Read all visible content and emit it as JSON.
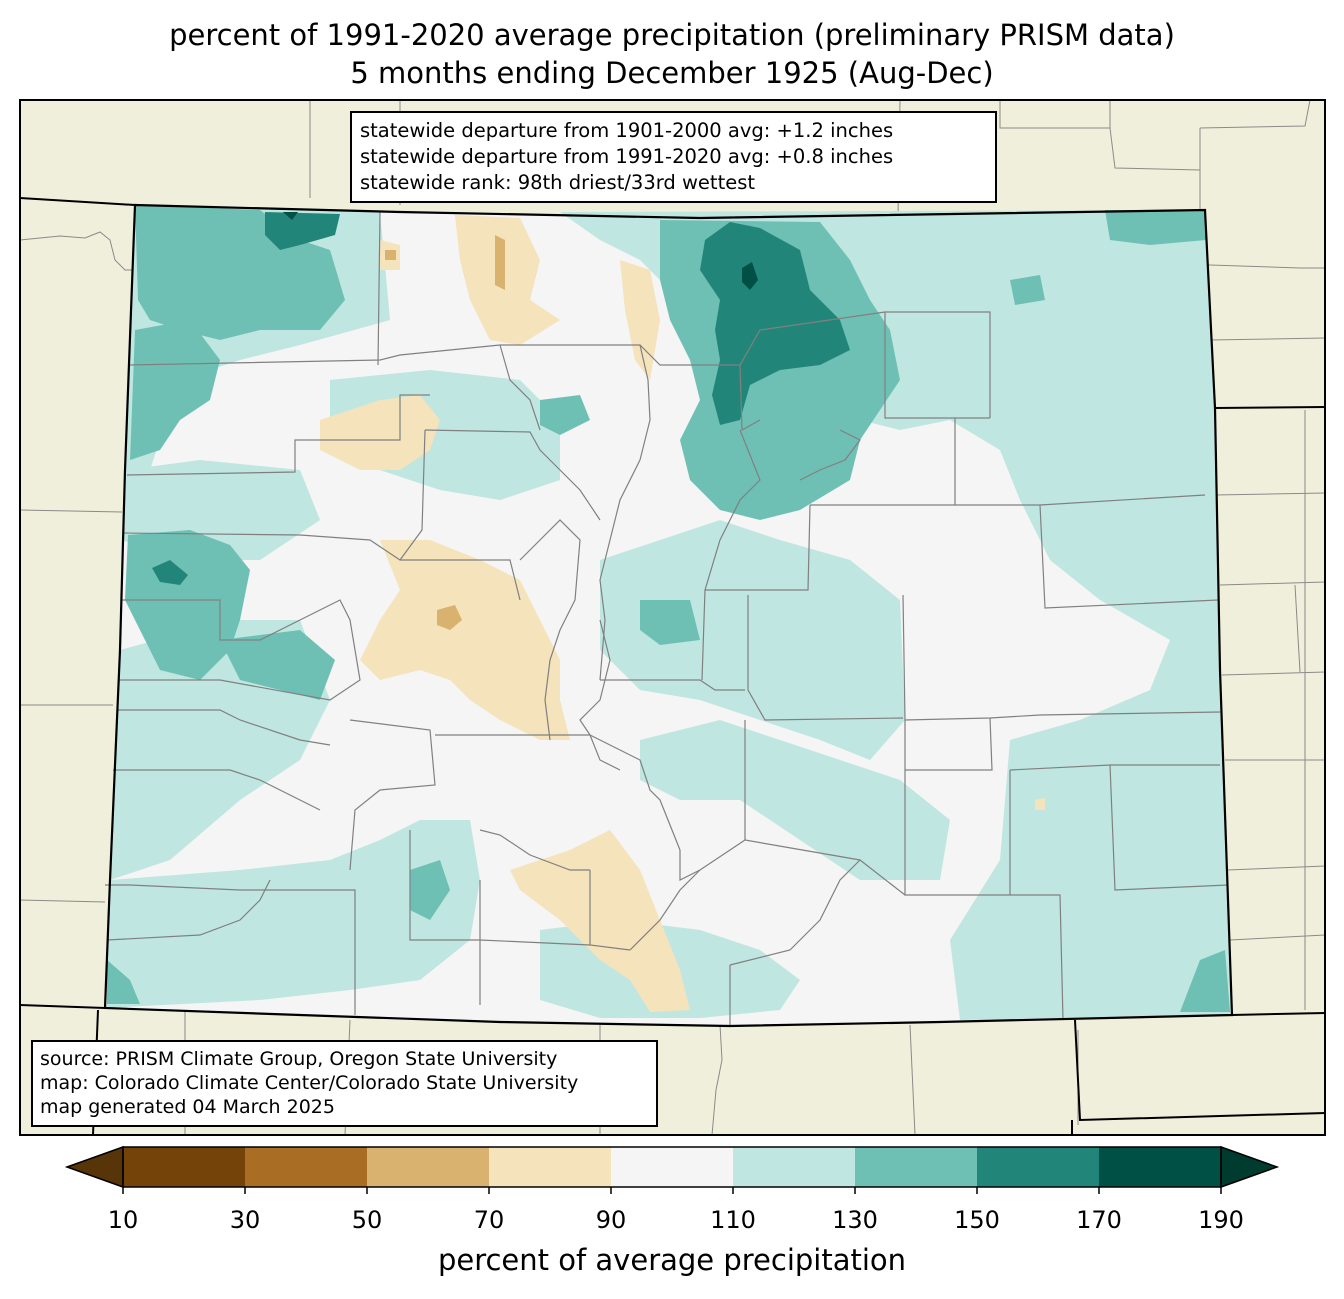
{
  "title_line1": "percent of 1991-2020 average precipitation (preliminary PRISM data)",
  "title_line2": "5 months ending December 1925 (Aug-Dec)",
  "stats": {
    "line1": "statewide departure from 1901-2000 avg: +1.2 inches",
    "line2": "statewide departure from 1991-2020 avg: +0.8 inches",
    "line3": "statewide rank: 98th driest/33rd wettest"
  },
  "credits": {
    "line1": "source: PRISM Climate Group, Oregon State University",
    "line2": "map: Colorado Climate Center/Colorado State University",
    "line3": "map generated 04 March 2025"
  },
  "colorbar": {
    "label": "percent of average precipitation",
    "ticks": [
      "10",
      "30",
      "50",
      "70",
      "90",
      "110",
      "130",
      "150",
      "170",
      "190"
    ],
    "tick_values": [
      10,
      30,
      50,
      70,
      90,
      110,
      130,
      150,
      170,
      190
    ],
    "colors": [
      "#744309",
      "#a96d24",
      "#d8b26e",
      "#f4e3bb",
      "#f4f5f4",
      "#bfe6e1",
      "#6fc0b4",
      "#218679",
      "#005046"
    ],
    "under_color": "#583508",
    "over_color": "#003b30"
  },
  "map_colors": {
    "outside_land": "#f0efdc",
    "state_border": "#000000",
    "county_lines": "#808080"
  }
}
